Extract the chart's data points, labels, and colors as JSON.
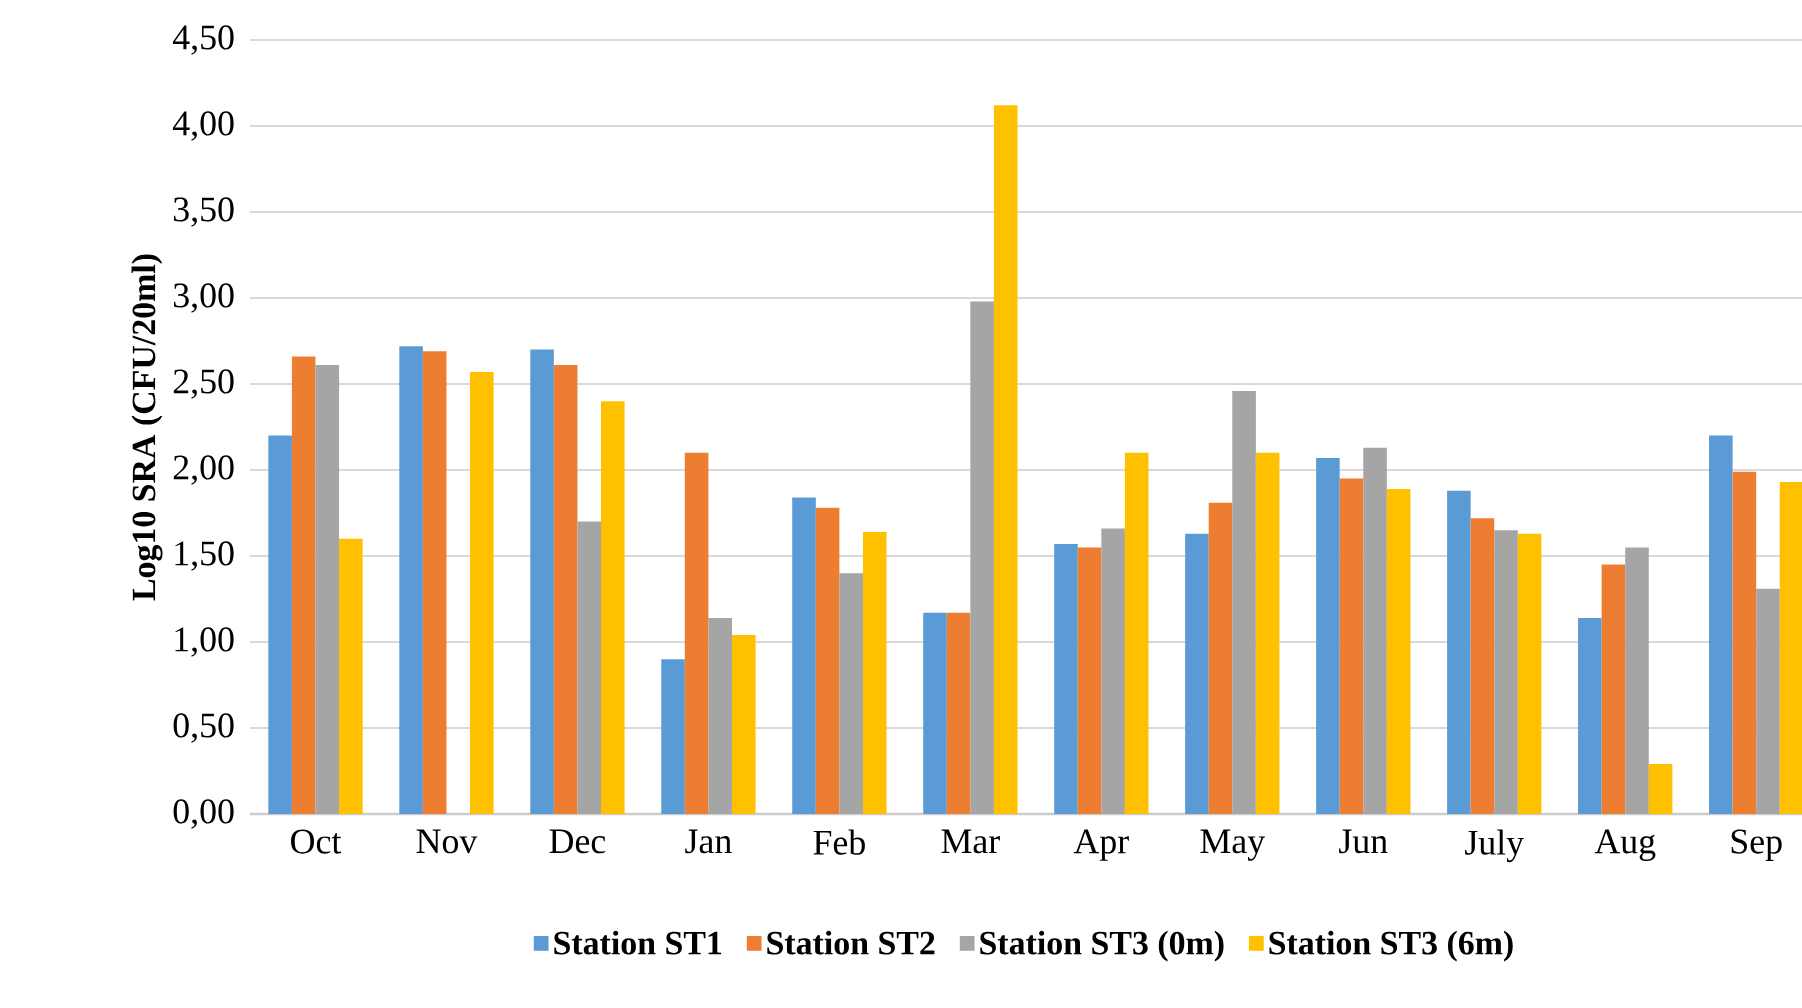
{
  "chart_data": {
    "type": "bar",
    "ylabel": "Log10 SRA (CFU/20ml)",
    "categories": [
      "Oct",
      "Nov",
      "Dec",
      "Jan",
      "Feb",
      "Mar",
      "Apr",
      "May",
      "Jun",
      "July",
      "Aug",
      "Sep"
    ],
    "series": [
      {
        "name": "Station ST1",
        "color": "#5b9bd5",
        "values": [
          2.2,
          2.72,
          2.7,
          0.9,
          1.84,
          1.17,
          1.57,
          1.63,
          2.07,
          1.88,
          1.14,
          2.2
        ]
      },
      {
        "name": "Station ST2",
        "color": "#ed7d31",
        "values": [
          2.66,
          2.69,
          2.61,
          2.1,
          1.78,
          1.17,
          1.55,
          1.81,
          1.95,
          1.72,
          1.45,
          1.99
        ]
      },
      {
        "name": "Station ST3 (0m)",
        "color": "#a5a5a5",
        "values": [
          2.61,
          null,
          1.7,
          1.14,
          1.4,
          2.98,
          1.66,
          2.46,
          2.13,
          1.65,
          1.55,
          1.31
        ]
      },
      {
        "name": "Station ST3 (6m)",
        "color": "#ffc000",
        "values": [
          1.6,
          2.57,
          2.4,
          1.04,
          1.64,
          4.12,
          2.1,
          2.1,
          1.89,
          1.63,
          0.29,
          1.93
        ]
      }
    ],
    "ylim": [
      0,
      4.5
    ],
    "yticks": [
      {
        "value": 0,
        "label": "0,00"
      },
      {
        "value": 0.5,
        "label": "0,50"
      },
      {
        "value": 1,
        "label": "1,00"
      },
      {
        "value": 1.5,
        "label": "1,50"
      },
      {
        "value": 2,
        "label": "2,00"
      },
      {
        "value": 2.5,
        "label": "2,50"
      },
      {
        "value": 3,
        "label": "3,00"
      },
      {
        "value": 3.5,
        "label": "3,50"
      },
      {
        "value": 4,
        "label": "4,00"
      },
      {
        "value": 4.5,
        "label": "4,50"
      }
    ],
    "grid": "y",
    "legend": "bottom"
  }
}
